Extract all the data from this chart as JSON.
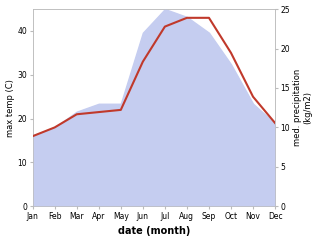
{
  "months": [
    "Jan",
    "Feb",
    "Mar",
    "Apr",
    "May",
    "Jun",
    "Jul",
    "Aug",
    "Sep",
    "Oct",
    "Nov",
    "Dec"
  ],
  "month_indices": [
    1,
    2,
    3,
    4,
    5,
    6,
    7,
    8,
    9,
    10,
    11,
    12
  ],
  "max_temp": [
    16,
    18,
    21,
    21.5,
    22,
    33,
    41,
    43,
    43,
    35,
    25,
    19
  ],
  "precipitation": [
    9,
    10,
    12,
    13,
    13,
    22,
    25,
    24,
    22,
    18,
    13,
    10.5
  ],
  "temp_color": "#c0392b",
  "precip_fill_color": "#c5cdf0",
  "xlabel": "date (month)",
  "ylabel_left": "max temp (C)",
  "ylabel_right": "med. precipitation\n(kg/m2)",
  "ylim_left": [
    0,
    45
  ],
  "ylim_right": [
    0,
    25
  ],
  "yticks_left": [
    0,
    10,
    20,
    30,
    40
  ],
  "yticks_right": [
    0,
    5,
    10,
    15,
    20,
    25
  ],
  "bg_color": "#ffffff",
  "line_width": 1.5,
  "label_fontsize": 6,
  "tick_fontsize": 5.5,
  "xlabel_fontsize": 7
}
